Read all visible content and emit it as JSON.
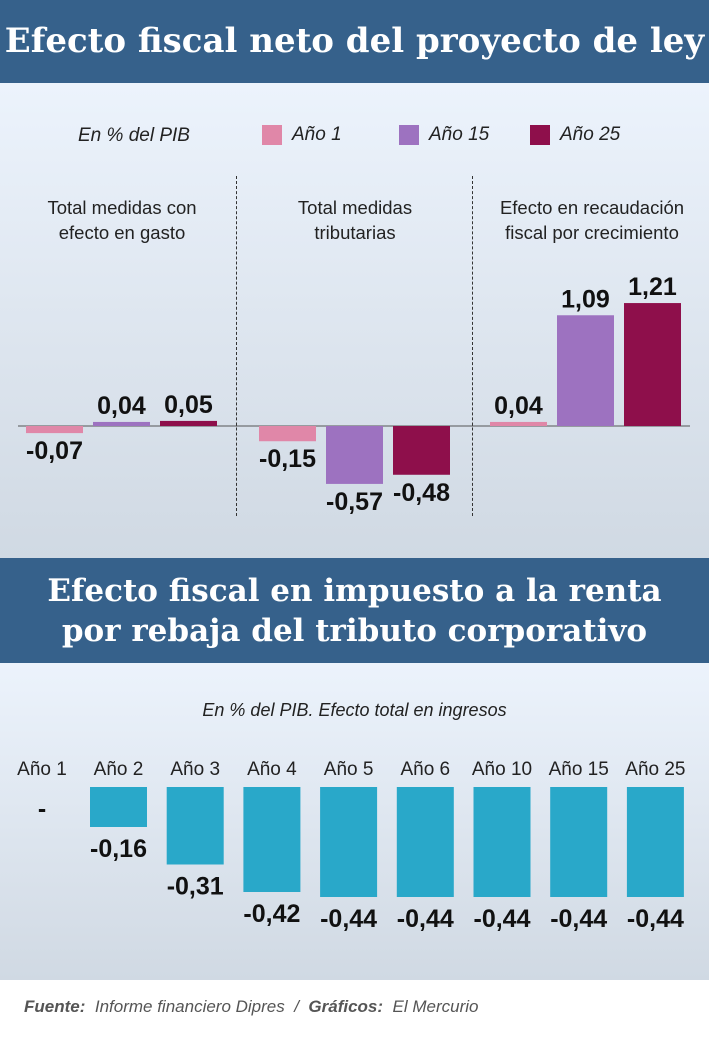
{
  "chart_data": [
    {
      "type": "bar",
      "title": "Efecto fiscal neto del proyecto de ley",
      "subtitle": "En % del PIB",
      "legend": [
        {
          "name": "Año 1",
          "color": "#e087a8"
        },
        {
          "name": "Año 15",
          "color": "#9d72c0"
        },
        {
          "name": "Año 25",
          "color": "#8e0f4b"
        }
      ],
      "categories": [
        [
          "Total medidas con",
          "efecto en gasto"
        ],
        [
          "Total medidas",
          "tributarias"
        ],
        [
          "Efecto en recaudación",
          "fiscal por crecimiento"
        ]
      ],
      "series": [
        {
          "name": "Año 1",
          "values": [
            -0.07,
            -0.15,
            0.04
          ]
        },
        {
          "name": "Año 15",
          "values": [
            0.04,
            -0.57,
            1.09
          ]
        },
        {
          "name": "Año 25",
          "values": [
            0.05,
            -0.48,
            1.21
          ]
        }
      ],
      "labels": [
        [
          "-0,07",
          "0,04",
          "0,05"
        ],
        [
          "-0,15",
          "-0,57",
          "-0,48"
        ],
        [
          "0,04",
          "1,09",
          "1,21"
        ]
      ]
    },
    {
      "type": "bar",
      "title": "Efecto fiscal en impuesto a la renta por rebaja del tributo corporativo",
      "subtitle": "En % del PIB. Efecto total en ingresos",
      "color": "#29a8c9",
      "categories": [
        "Año 1",
        "Año 2",
        "Año 3",
        "Año 4",
        "Año 5",
        "Año 6",
        "Año 10",
        "Año 15",
        "Año 25"
      ],
      "values": [
        0,
        -0.16,
        -0.31,
        -0.42,
        -0.44,
        -0.44,
        -0.44,
        -0.44,
        -0.44
      ],
      "labels": [
        "-",
        "-0,16",
        "-0,31",
        "-0,42",
        "-0,44",
        "-0,44",
        "-0,44",
        "-0,44",
        "-0,44"
      ]
    }
  ],
  "titles": {
    "t1": "Efecto fiscal neto del proyecto de ley",
    "t2a": "Efecto fiscal en impuesto a la renta",
    "t2b": "por rebaja del tributo corporativo"
  },
  "footer": {
    "src_label": "Fuente:",
    "src": "Informe financiero Dipres",
    "sep": "/",
    "gfx_label": "Gráficos:",
    "gfx": "El Mercurio"
  }
}
